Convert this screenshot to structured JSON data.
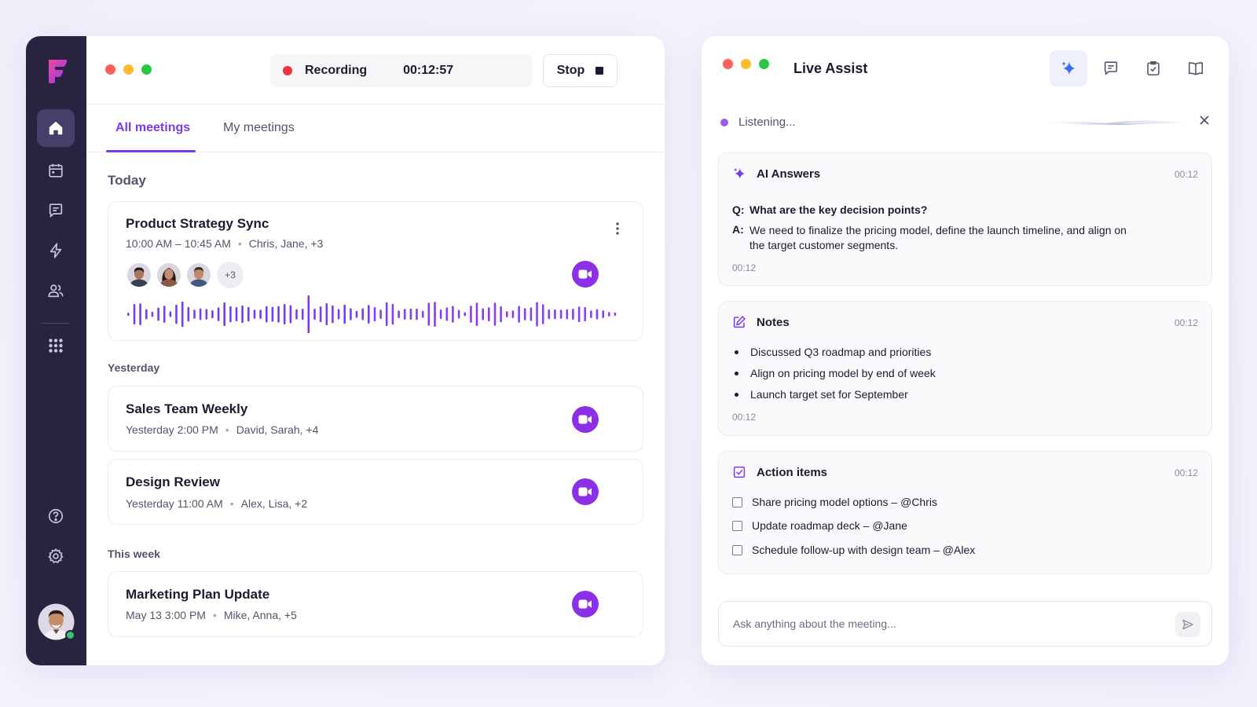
{
  "colors": {
    "accent": "#7c3aed",
    "camera_button": "#8b30e6",
    "sidebar_bg": "#28243f",
    "recording_dot": "#ee3340",
    "online_status": "#3cc06a"
  },
  "sidebar": {
    "logo": "F",
    "items": [
      {
        "icon": "home-icon",
        "active": true
      },
      {
        "icon": "calendar-icon",
        "active": false
      },
      {
        "icon": "chat-icon",
        "active": false
      },
      {
        "icon": "lightning-icon",
        "active": false
      },
      {
        "icon": "users-icon",
        "active": false
      },
      {
        "icon": "apps-grid-icon",
        "active": false
      }
    ],
    "bottom_items": [
      {
        "icon": "help-icon"
      },
      {
        "icon": "settings-icon"
      }
    ],
    "user_status": "online"
  },
  "recorder": {
    "status_label": "Recording",
    "elapsed": "00:12:57",
    "stop_label": "Stop"
  },
  "tabs": [
    {
      "label": "All meetings",
      "active": true
    },
    {
      "label": "My meetings",
      "active": false
    }
  ],
  "sections": {
    "today": "Today",
    "yesterday": "Yesterday",
    "this_week": "This week"
  },
  "meetings": [
    {
      "title": "Product Strategy Sync",
      "time": "10:00 AM – 10:45 AM",
      "participants": "Chris, Jane, +3",
      "avatar_extra": "+3",
      "recording_wave": true
    },
    {
      "title": "Sales Team Weekly",
      "time": "Yesterday 2:00 PM",
      "participants": "David, Sarah, +4"
    },
    {
      "title": "Design Review",
      "time": "Yesterday 11:00 AM",
      "participants": "Alex, Lisa, +2"
    },
    {
      "title": "Marketing Plan Update",
      "time": "May 13 3:00 PM",
      "participants": "Mike, Anna, +5"
    }
  ],
  "live_assist": {
    "title": "Live Assist",
    "header_icons": [
      "sparkle-icon",
      "chat-icon",
      "clipboard-check-icon",
      "book-icon"
    ],
    "listening_label": "Listening...",
    "ai_answers": {
      "title": "AI Answers",
      "time": "00:12",
      "q_prefix": "Q:",
      "question": "What are the key decision points?",
      "a_prefix": "A:",
      "answer": "We need to finalize the pricing model, define the launch timeline, and align on the target customer segments.",
      "foot_time": "00:12"
    },
    "notes": {
      "title": "Notes",
      "time": "00:12",
      "items": [
        "Discussed Q3 roadmap and priorities",
        "Align on pricing model by end of week",
        "Launch target set for September"
      ],
      "foot_time": "00:12"
    },
    "action_items": {
      "title": "Action items",
      "time": "00:12",
      "items": [
        "Share pricing model options – @Chris",
        "Update roadmap deck – @Jane",
        "Schedule follow-up with design team – @Alex"
      ]
    },
    "ask": {
      "placeholder": "Ask anything about the meeting..."
    }
  }
}
